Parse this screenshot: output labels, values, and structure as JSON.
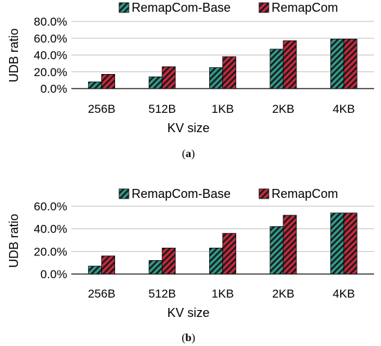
{
  "colors": {
    "base_fill": "#2f9a8a",
    "remap_fill": "#c8283d",
    "stripe": "#1a1a1a",
    "axis": "#000000",
    "grid": "#bfbfbf"
  },
  "chart_data": [
    {
      "type": "bar",
      "caption": "(a)",
      "caption_letter": "a",
      "categories": [
        "256B",
        "512B",
        "1KB",
        "2KB",
        "4KB"
      ],
      "series": [
        {
          "name": "RemapCom-Base",
          "values": [
            8,
            14,
            25,
            47,
            59
          ]
        },
        {
          "name": "RemapCom",
          "values": [
            17,
            26,
            38,
            57,
            59
          ]
        }
      ],
      "xlabel": "KV size",
      "ylabel": "UDB ratio",
      "ylim": [
        0,
        80
      ],
      "yticks": [
        0,
        20,
        40,
        60,
        80
      ],
      "ytick_labels": [
        "0.0%",
        "20.0%",
        "40.0%",
        "60.0%",
        "80.0%"
      ],
      "grid": true,
      "legend_position": "top-center"
    },
    {
      "type": "bar",
      "caption": "(b)",
      "caption_letter": "b",
      "categories": [
        "256B",
        "512B",
        "1KB",
        "2KB",
        "4KB"
      ],
      "series": [
        {
          "name": "RemapCom-Base",
          "values": [
            7,
            12,
            23,
            42,
            54
          ]
        },
        {
          "name": "RemapCom",
          "values": [
            16,
            23,
            36,
            52,
            54
          ]
        }
      ],
      "xlabel": "KV size",
      "ylabel": "UDB ratio",
      "ylim": [
        0,
        60
      ],
      "yticks": [
        0,
        20,
        40,
        60
      ],
      "ytick_labels": [
        "0.0%",
        "20.0%",
        "40.0%",
        "60.0%"
      ],
      "grid": true,
      "legend_position": "top-center"
    }
  ]
}
